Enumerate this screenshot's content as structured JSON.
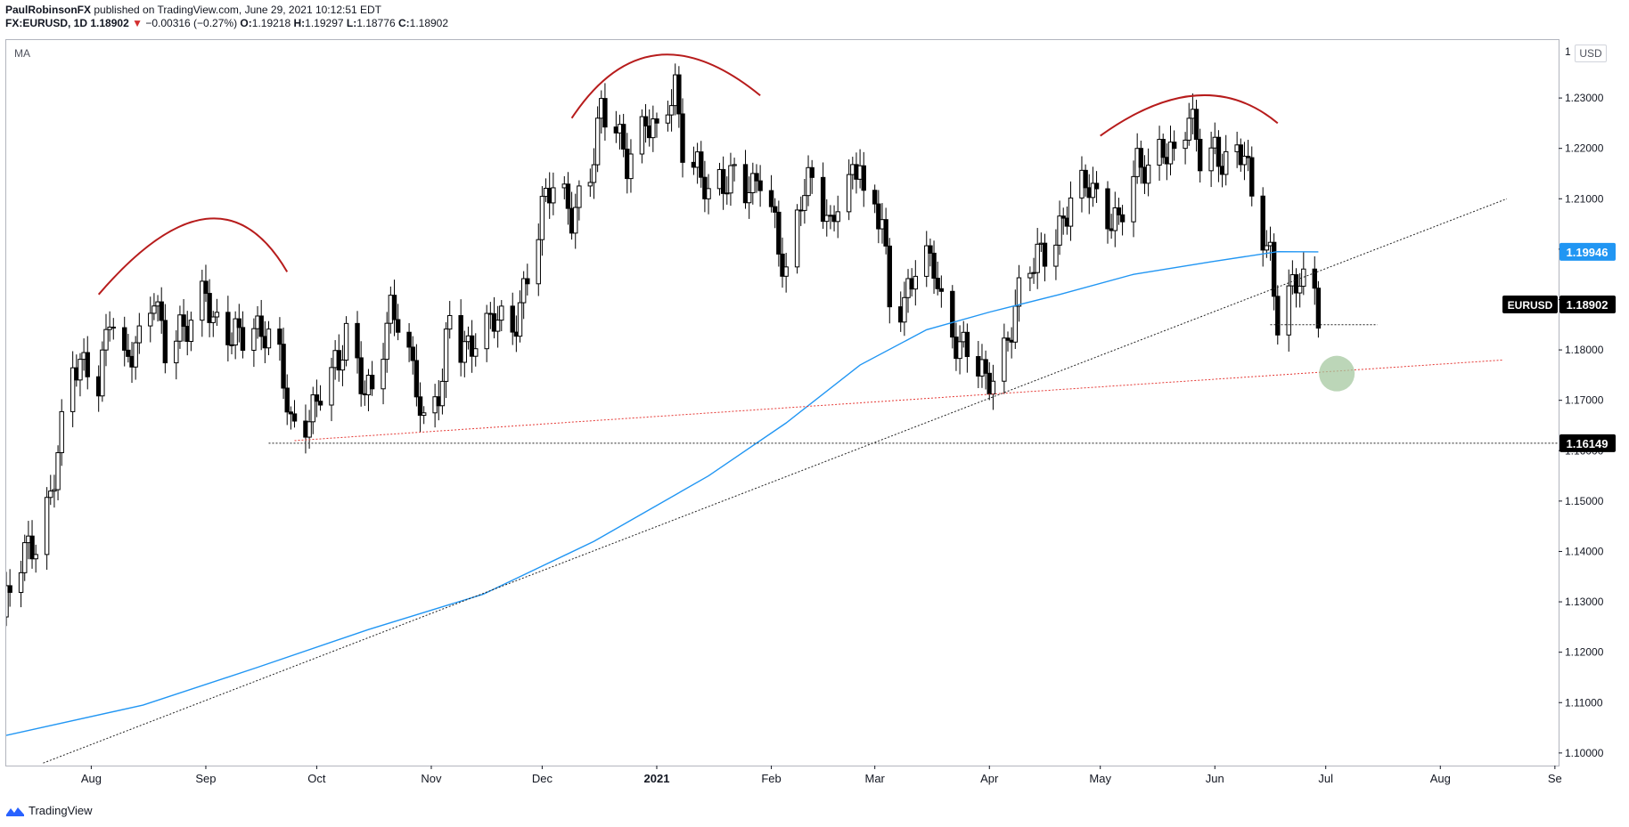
{
  "header": {
    "author": "PaulRobinsonFX",
    "published": "published on TradingView.com, June 29, 2021 10:12:51 EDT",
    "symbol": "FX:EURUSD, 1D",
    "last": "1.18902",
    "change_arrow": "▼",
    "change": "−0.00316 (−0.27%)",
    "open_label": "O:",
    "open": "1.19218",
    "high_label": "H:",
    "high": "1.19297",
    "low_label": "L:",
    "low": "1.18776",
    "close_label": "C:",
    "close": "1.18902"
  },
  "indicator_label": "MA",
  "currency_badge": "USD",
  "footer": {
    "brand": "TradingView",
    "logo_icon": "tradingview-logo-icon"
  },
  "colors": {
    "ma_line": "#2196f3",
    "pattern_arcs": "#b71c1c",
    "red_trendline": "#e53935",
    "target_circle": "#a5c8a0",
    "up_candle": "#ffffff",
    "down_candle": "#000000"
  },
  "chart_data": {
    "type": "candlestick",
    "symbol": "EURUSD",
    "timeframe": "1D",
    "x_range": [
      "2020-07-09",
      "2021-09-02"
    ],
    "ylim": [
      1.0975,
      1.2415
    ],
    "yticks": [
      "1.10000",
      "1.11000",
      "1.12000",
      "1.13000",
      "1.14000",
      "1.15000",
      "1.16000",
      "1.17000",
      "1.18000",
      "1.19000",
      "1.20000",
      "1.21000",
      "1.22000",
      "1.23000"
    ],
    "top_tick_fragment": "1",
    "xticks": [
      {
        "date": "2020-08-01",
        "label": "Aug",
        "bold": false
      },
      {
        "date": "2020-09-01",
        "label": "Sep",
        "bold": false
      },
      {
        "date": "2020-10-01",
        "label": "Oct",
        "bold": false
      },
      {
        "date": "2020-11-01",
        "label": "Nov",
        "bold": false
      },
      {
        "date": "2020-12-01",
        "label": "Dec",
        "bold": false
      },
      {
        "date": "2021-01-01",
        "label": "2021",
        "bold": true
      },
      {
        "date": "2021-02-01",
        "label": "Feb",
        "bold": false
      },
      {
        "date": "2021-03-01",
        "label": "Mar",
        "bold": false
      },
      {
        "date": "2021-04-01",
        "label": "Apr",
        "bold": false
      },
      {
        "date": "2021-05-01",
        "label": "May",
        "bold": false
      },
      {
        "date": "2021-06-01",
        "label": "Jun",
        "bold": false
      },
      {
        "date": "2021-07-01",
        "label": "Jul",
        "bold": false
      },
      {
        "date": "2021-08-01",
        "label": "Aug",
        "bold": false
      },
      {
        "date": "2021-09-01",
        "label": "Se",
        "bold": false
      }
    ],
    "price_labels": [
      {
        "value": "1.19946",
        "price": 1.19946,
        "style": "ma"
      },
      {
        "value": "1.18902",
        "price": 1.18902,
        "style": "last",
        "name": "EURUSD"
      },
      {
        "value": "1.16149",
        "price": 1.16149,
        "style": "level"
      }
    ],
    "close_path": [
      [
        "2020-07-09",
        1.129
      ],
      [
        "2020-07-14",
        1.139
      ],
      [
        "2020-07-17",
        1.143
      ],
      [
        "2020-07-21",
        1.152
      ],
      [
        "2020-07-24",
        1.163
      ],
      [
        "2020-07-27",
        1.175
      ],
      [
        "2020-07-31",
        1.178
      ],
      [
        "2020-08-03",
        1.175
      ],
      [
        "2020-08-06",
        1.187
      ],
      [
        "2020-08-10",
        1.175
      ],
      [
        "2020-08-14",
        1.183
      ],
      [
        "2020-08-18",
        1.193
      ],
      [
        "2020-08-21",
        1.179
      ],
      [
        "2020-08-26",
        1.183
      ],
      [
        "2020-09-01",
        1.194
      ],
      [
        "2020-09-03",
        1.185
      ],
      [
        "2020-09-08",
        1.181
      ],
      [
        "2020-09-10",
        1.183
      ],
      [
        "2020-09-14",
        1.186
      ],
      [
        "2020-09-17",
        1.184
      ],
      [
        "2020-09-21",
        1.177
      ],
      [
        "2020-09-24",
        1.164
      ],
      [
        "2020-09-28",
        1.167
      ],
      [
        "2020-10-02",
        1.172
      ],
      [
        "2020-10-07",
        1.176
      ],
      [
        "2020-10-09",
        1.183
      ],
      [
        "2020-10-14",
        1.174
      ],
      [
        "2020-10-16",
        1.172
      ],
      [
        "2020-10-21",
        1.186
      ],
      [
        "2020-10-23",
        1.186
      ],
      [
        "2020-10-28",
        1.175
      ],
      [
        "2020-10-30",
        1.165
      ],
      [
        "2020-11-04",
        1.172
      ],
      [
        "2020-11-06",
        1.187
      ],
      [
        "2020-11-09",
        1.181
      ],
      [
        "2020-11-13",
        1.183
      ],
      [
        "2020-11-18",
        1.185
      ],
      [
        "2020-11-23",
        1.184
      ],
      [
        "2020-11-27",
        1.196
      ],
      [
        "2020-12-01",
        1.207
      ],
      [
        "2020-12-04",
        1.212
      ],
      [
        "2020-12-09",
        1.208
      ],
      [
        "2020-12-14",
        1.215
      ],
      [
        "2020-12-17",
        1.226
      ],
      [
        "2020-12-21",
        1.224
      ],
      [
        "2020-12-24",
        1.219
      ],
      [
        "2020-12-29",
        1.225
      ],
      [
        "2021-01-01",
        1.221
      ],
      [
        "2021-01-06",
        1.233
      ],
      [
        "2021-01-08",
        1.222
      ],
      [
        "2021-01-12",
        1.216
      ],
      [
        "2021-01-15",
        1.209
      ],
      [
        "2021-01-19",
        1.213
      ],
      [
        "2021-01-22",
        1.217
      ],
      [
        "2021-01-27",
        1.211
      ],
      [
        "2021-01-29",
        1.213
      ],
      [
        "2021-02-02",
        1.204
      ],
      [
        "2021-02-05",
        1.196
      ],
      [
        "2021-02-09",
        1.211
      ],
      [
        "2021-02-12",
        1.212
      ],
      [
        "2021-02-17",
        1.204
      ],
      [
        "2021-02-19",
        1.212
      ],
      [
        "2021-02-25",
        1.217
      ],
      [
        "2021-02-26",
        1.207
      ],
      [
        "2021-03-03",
        1.206
      ],
      [
        "2021-03-05",
        1.191
      ],
      [
        "2021-03-09",
        1.19
      ],
      [
        "2021-03-12",
        1.195
      ],
      [
        "2021-03-17",
        1.197
      ],
      [
        "2021-03-19",
        1.19
      ],
      [
        "2021-03-24",
        1.181
      ],
      [
        "2021-03-26",
        1.179
      ],
      [
        "2021-03-31",
        1.173
      ],
      [
        "2021-04-05",
        1.181
      ],
      [
        "2021-04-09",
        1.19
      ],
      [
        "2021-04-14",
        1.198
      ],
      [
        "2021-04-19",
        1.204
      ],
      [
        "2021-04-23",
        1.209
      ],
      [
        "2021-04-28",
        1.212
      ],
      [
        "2021-05-03",
        1.208
      ],
      [
        "2021-05-06",
        1.206
      ],
      [
        "2021-05-11",
        1.215
      ],
      [
        "2021-05-14",
        1.216
      ],
      [
        "2021-05-18",
        1.222
      ],
      [
        "2021-05-21",
        1.218
      ],
      [
        "2021-05-25",
        1.225
      ],
      [
        "2021-05-28",
        1.219
      ],
      [
        "2021-06-01",
        1.221
      ],
      [
        "2021-06-04",
        1.217
      ],
      [
        "2021-06-09",
        1.218
      ],
      [
        "2021-06-11",
        1.21
      ],
      [
        "2021-06-16",
        1.2
      ],
      [
        "2021-06-18",
        1.186
      ],
      [
        "2021-06-21",
        1.19
      ],
      [
        "2021-06-24",
        1.193
      ],
      [
        "2021-06-28",
        1.192
      ],
      [
        "2021-06-29",
        1.189
      ]
    ],
    "ma_path": [
      [
        "2020-07-09",
        1.1035
      ],
      [
        "2020-08-15",
        1.1095
      ],
      [
        "2020-09-15",
        1.117
      ],
      [
        "2020-10-15",
        1.1245
      ],
      [
        "2020-11-15",
        1.1315
      ],
      [
        "2020-12-15",
        1.142
      ],
      [
        "2021-01-15",
        1.155
      ],
      [
        "2021-02-05",
        1.1655
      ],
      [
        "2021-02-25",
        1.177
      ],
      [
        "2021-03-15",
        1.184
      ],
      [
        "2021-04-01",
        1.1875
      ],
      [
        "2021-04-20",
        1.191
      ],
      [
        "2021-05-10",
        1.195
      ],
      [
        "2021-05-31",
        1.1975
      ],
      [
        "2021-06-18",
        1.1995
      ],
      [
        "2021-06-29",
        1.19946
      ]
    ],
    "trendline_black": {
      "from": [
        "2020-07-19",
        1.098
      ],
      "to": [
        "2021-08-19",
        1.21
      ]
    },
    "trendline_red": {
      "from": [
        "2020-09-25",
        1.162
      ],
      "to": [
        "2021-08-18",
        1.178
      ]
    },
    "support_level": {
      "price": 1.16149,
      "from": "2020-09-18"
    },
    "short_support": {
      "price": 1.185,
      "from": "2021-06-16",
      "to": "2021-07-15"
    },
    "target_zone": {
      "date": "2021-07-04",
      "price": 1.1753
    },
    "pattern_arcs": [
      {
        "from": [
          "2020-08-03",
          1.191
        ],
        "peak": [
          "2020-09-01",
          1.206
        ],
        "to": [
          "2020-09-23",
          1.1955
        ]
      },
      {
        "from": [
          "2020-12-09",
          1.226
        ],
        "peak": [
          "2021-01-01",
          1.2385
        ],
        "to": [
          "2021-01-29",
          1.2305
        ]
      },
      {
        "from": [
          "2021-05-01",
          1.2225
        ],
        "peak": [
          "2021-05-27",
          1.2305
        ],
        "to": [
          "2021-06-18",
          1.225
        ]
      }
    ]
  }
}
